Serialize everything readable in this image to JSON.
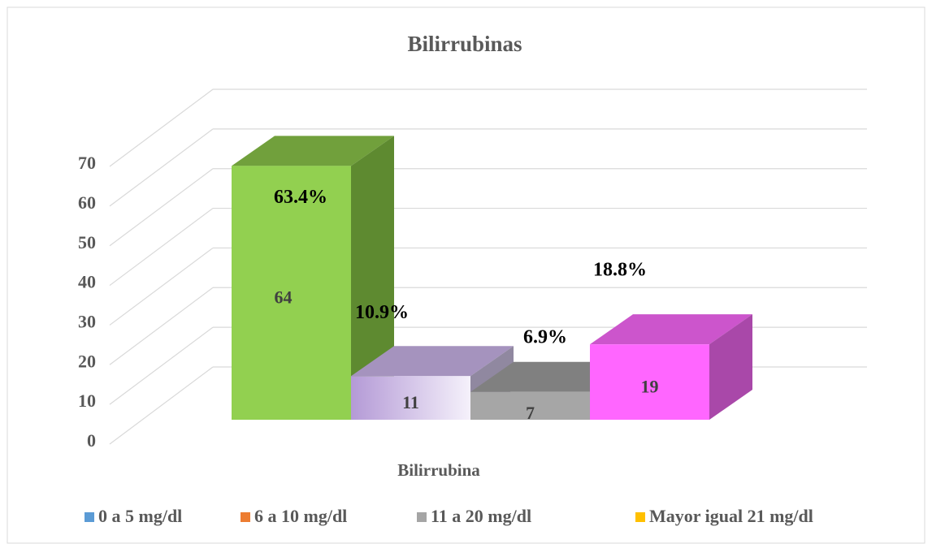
{
  "chart_data": {
    "type": "bar3d",
    "title": "Bilirrubinas",
    "x_label": "Bilirrubina",
    "ylim": [
      0,
      70
    ],
    "yticks": [
      0,
      10,
      20,
      30,
      40,
      50,
      60,
      70
    ],
    "grid": true,
    "legend": "bottom",
    "series": [
      {
        "name": "0 a 5 mg/dl",
        "color": "#5b9bd5",
        "values": [
          64
        ],
        "percent_label": "63.4%",
        "bar_colors": {
          "front": "#92d050",
          "front2": "#92d050",
          "top": "#71a03c",
          "side": "#5e8a30"
        }
      },
      {
        "name": "6 a 10 mg/dl",
        "color": "#ed7d31",
        "values": [
          11
        ],
        "percent_label": "10.9%",
        "bar_colors": {
          "front": "#b49ad6",
          "front2": "#f5f1fb",
          "top": "#a593be",
          "side": "#9088a0"
        }
      },
      {
        "name": "11 a 20 mg/dl",
        "color": "#a5a5a5",
        "values": [
          7
        ],
        "percent_label": "6.9%",
        "bar_colors": {
          "front": "#a6a6a6",
          "front2": "#a6a6a6",
          "top": "#808080",
          "side": "#8a8a8a"
        }
      },
      {
        "name": "Mayor igual 21 mg/dl",
        "color": "#ffc000",
        "values": [
          19
        ],
        "percent_label": "18.8%",
        "bar_colors": {
          "front": "#ff66ff",
          "front2": "#ff66ff",
          "top": "#cc55cc",
          "side": "#a948a9"
        }
      }
    ]
  }
}
